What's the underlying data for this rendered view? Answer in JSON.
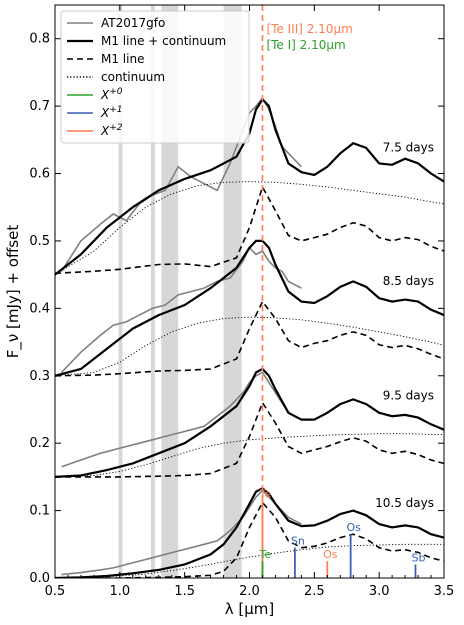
{
  "chart_data": {
    "type": "line",
    "title": "",
    "xlabel": "λ [μm]",
    "ylabel": "F_ν [mJy] + offset",
    "xlim": [
      0.5,
      3.5
    ],
    "ylim": [
      0.0,
      0.85
    ],
    "x_ticks": [
      "0.5",
      "1.0",
      "1.5",
      "2.0",
      "2.5",
      "3.0",
      "3.5"
    ],
    "y_ticks": [
      "0.0",
      "0.1",
      "0.2",
      "0.3",
      "0.4",
      "0.5",
      "0.6",
      "0.7",
      "0.8"
    ],
    "grid": false,
    "legend_position": "top-left",
    "legend": [
      {
        "label": "AT2017gfo",
        "style": "solid",
        "color": "#808080"
      },
      {
        "label": "M1 line + continuum",
        "style": "solid",
        "color": "#000000"
      },
      {
        "label": "M1 line",
        "style": "dashed",
        "color": "#000000"
      },
      {
        "label": "continuum",
        "style": "dotted",
        "color": "#000000"
      },
      {
        "label": "X+0",
        "style": "solid",
        "color": "#2ca02c"
      },
      {
        "label": "X+1",
        "style": "solid",
        "color": "#3a5fb0"
      },
      {
        "label": "X+2",
        "style": "solid",
        "color": "#ff7f50"
      }
    ],
    "reference_line": {
      "x": 2.1,
      "color": "#ff7f50",
      "style": "dashed"
    },
    "ref_labels": [
      {
        "text": "[Te III] 2.10μm",
        "color": "#ff7f50"
      },
      {
        "text": "[Te I] 2.10μm",
        "color": "#2ca02c"
      }
    ],
    "telluric_bands": [
      [
        0.99,
        1.02
      ],
      [
        1.24,
        1.27
      ],
      [
        1.32,
        1.45
      ],
      [
        1.8,
        1.94
      ]
    ],
    "epochs": [
      {
        "label": "7.5 days",
        "offset": 0.45,
        "model_total": {
          "x": [
            0.5,
            0.7,
            0.9,
            1.1,
            1.3,
            1.5,
            1.7,
            1.9,
            2.0,
            2.05,
            2.1,
            2.15,
            2.2,
            2.3,
            2.4,
            2.5,
            2.6,
            2.7,
            2.8,
            2.9,
            3.0,
            3.1,
            3.2,
            3.3,
            3.4,
            3.5
          ],
          "y": [
            0.45,
            0.48,
            0.52,
            0.55,
            0.575,
            0.592,
            0.605,
            0.625,
            0.66,
            0.695,
            0.71,
            0.7,
            0.665,
            0.615,
            0.602,
            0.598,
            0.61,
            0.63,
            0.645,
            0.638,
            0.615,
            0.613,
            0.622,
            0.615,
            0.6,
            0.588
          ]
        },
        "model_line": {
          "x": [
            0.5,
            0.8,
            1.0,
            1.3,
            1.5,
            1.7,
            1.9,
            2.0,
            2.1,
            2.2,
            2.3,
            2.4,
            2.5,
            2.6,
            2.7,
            2.8,
            2.9,
            3.0,
            3.1,
            3.2,
            3.3,
            3.4,
            3.5
          ],
          "y": [
            0.452,
            0.455,
            0.458,
            0.465,
            0.466,
            0.462,
            0.475,
            0.52,
            0.58,
            0.545,
            0.508,
            0.5,
            0.505,
            0.51,
            0.52,
            0.527,
            0.522,
            0.505,
            0.5,
            0.505,
            0.502,
            0.492,
            0.485
          ]
        },
        "continuum": {
          "x": [
            0.5,
            0.8,
            1.0,
            1.2,
            1.4,
            1.6,
            1.8,
            2.0,
            2.2,
            2.4,
            2.6,
            2.8,
            3.0,
            3.2,
            3.4,
            3.5
          ],
          "y": [
            0.45,
            0.485,
            0.52,
            0.55,
            0.57,
            0.582,
            0.587,
            0.588,
            0.587,
            0.584,
            0.58,
            0.575,
            0.57,
            0.565,
            0.558,
            0.555
          ]
        },
        "observed": {
          "x": [
            0.55,
            0.7,
            0.85,
            0.95,
            1.05,
            1.15,
            1.25,
            1.35,
            1.45,
            1.55,
            1.65,
            1.75,
            1.85,
            1.95,
            2.0,
            2.05,
            2.1,
            2.15,
            2.2,
            2.25,
            2.3,
            2.35,
            2.4
          ],
          "y": [
            0.455,
            0.5,
            0.525,
            0.54,
            0.53,
            0.555,
            0.568,
            0.575,
            0.61,
            0.595,
            0.585,
            0.575,
            0.615,
            0.665,
            0.69,
            0.7,
            0.712,
            0.695,
            0.67,
            0.64,
            0.63,
            0.62,
            0.61
          ]
        }
      },
      {
        "label": "8.5 days",
        "offset": 0.3,
        "model_total": {
          "x": [
            0.5,
            0.7,
            0.9,
            1.1,
            1.3,
            1.5,
            1.7,
            1.9,
            2.0,
            2.05,
            2.1,
            2.15,
            2.2,
            2.3,
            2.4,
            2.5,
            2.6,
            2.7,
            2.8,
            2.9,
            3.0,
            3.1,
            3.2,
            3.3,
            3.4,
            3.5
          ],
          "y": [
            0.3,
            0.31,
            0.34,
            0.37,
            0.39,
            0.405,
            0.43,
            0.46,
            0.49,
            0.5,
            0.5,
            0.49,
            0.465,
            0.425,
            0.41,
            0.408,
            0.418,
            0.432,
            0.44,
            0.432,
            0.415,
            0.41,
            0.413,
            0.41,
            0.398,
            0.39
          ]
        },
        "model_line": {
          "x": [
            0.5,
            0.8,
            1.0,
            1.3,
            1.5,
            1.7,
            1.9,
            2.0,
            2.1,
            2.2,
            2.3,
            2.4,
            2.5,
            2.6,
            2.7,
            2.8,
            2.9,
            3.0,
            3.1,
            3.2,
            3.3,
            3.4,
            3.5
          ],
          "y": [
            0.3,
            0.301,
            0.303,
            0.307,
            0.308,
            0.31,
            0.325,
            0.37,
            0.41,
            0.385,
            0.352,
            0.342,
            0.348,
            0.352,
            0.36,
            0.365,
            0.36,
            0.346,
            0.342,
            0.345,
            0.34,
            0.332,
            0.325
          ]
        },
        "continuum": {
          "x": [
            0.5,
            0.8,
            1.0,
            1.2,
            1.4,
            1.6,
            1.8,
            2.0,
            2.2,
            2.4,
            2.6,
            2.8,
            3.0,
            3.2,
            3.4,
            3.5
          ],
          "y": [
            0.3,
            0.305,
            0.32,
            0.345,
            0.365,
            0.378,
            0.385,
            0.387,
            0.386,
            0.383,
            0.378,
            0.372,
            0.365,
            0.358,
            0.35,
            0.345
          ]
        },
        "observed": {
          "x": [
            0.55,
            0.7,
            0.85,
            0.95,
            1.05,
            1.15,
            1.25,
            1.35,
            1.45,
            1.55,
            1.65,
            1.75,
            1.85,
            1.95,
            2.0,
            2.05,
            2.1,
            2.15,
            2.2,
            2.25,
            2.3,
            2.35,
            2.4
          ],
          "y": [
            0.305,
            0.335,
            0.36,
            0.375,
            0.38,
            0.39,
            0.4,
            0.405,
            0.42,
            0.425,
            0.43,
            0.44,
            0.445,
            0.47,
            0.49,
            0.48,
            0.485,
            0.47,
            0.46,
            0.455,
            0.44,
            0.435,
            0.43
          ]
        }
      },
      {
        "label": "9.5 days",
        "offset": 0.15,
        "model_total": {
          "x": [
            0.5,
            0.7,
            0.9,
            1.1,
            1.3,
            1.5,
            1.7,
            1.9,
            2.0,
            2.05,
            2.1,
            2.15,
            2.2,
            2.3,
            2.4,
            2.5,
            2.6,
            2.7,
            2.8,
            2.9,
            3.0,
            3.1,
            3.2,
            3.3,
            3.4,
            3.5
          ],
          "y": [
            0.15,
            0.152,
            0.16,
            0.17,
            0.185,
            0.2,
            0.225,
            0.255,
            0.285,
            0.305,
            0.31,
            0.3,
            0.28,
            0.245,
            0.235,
            0.235,
            0.245,
            0.258,
            0.265,
            0.258,
            0.245,
            0.24,
            0.242,
            0.238,
            0.228,
            0.22
          ]
        },
        "model_line": {
          "x": [
            0.5,
            0.8,
            1.0,
            1.3,
            1.5,
            1.7,
            1.9,
            2.0,
            2.1,
            2.2,
            2.3,
            2.4,
            2.5,
            2.6,
            2.7,
            2.8,
            2.9,
            3.0,
            3.1,
            3.2,
            3.3,
            3.4,
            3.5
          ],
          "y": [
            0.15,
            0.15,
            0.15,
            0.151,
            0.152,
            0.155,
            0.17,
            0.21,
            0.26,
            0.23,
            0.195,
            0.185,
            0.19,
            0.195,
            0.202,
            0.208,
            0.203,
            0.19,
            0.185,
            0.188,
            0.183,
            0.175,
            0.17
          ]
        },
        "continuum": {
          "x": [
            0.5,
            0.8,
            1.0,
            1.2,
            1.4,
            1.6,
            1.8,
            2.0,
            2.2,
            2.4,
            2.6,
            2.8,
            3.0,
            3.2,
            3.4,
            3.5
          ],
          "y": [
            0.15,
            0.152,
            0.158,
            0.168,
            0.18,
            0.192,
            0.2,
            0.205,
            0.208,
            0.21,
            0.212,
            0.213,
            0.214,
            0.214,
            0.213,
            0.213
          ]
        },
        "observed": {
          "x": [
            0.55,
            0.7,
            0.85,
            0.95,
            1.05,
            1.15,
            1.25,
            1.35,
            1.45,
            1.55,
            1.65,
            1.75,
            1.85,
            1.95,
            2.0,
            2.05,
            2.1,
            2.15,
            2.2,
            2.25,
            2.3,
            2.35,
            2.4
          ],
          "y": [
            0.165,
            0.175,
            0.185,
            0.19,
            0.195,
            0.2,
            0.205,
            0.21,
            0.215,
            0.22,
            0.225,
            0.24,
            0.255,
            0.275,
            0.29,
            0.3,
            0.305,
            0.29,
            0.275,
            0.26,
            0.245,
            0.24,
            0.235
          ]
        }
      },
      {
        "label": "10.5 days",
        "offset": 0.0,
        "model_total": {
          "x": [
            0.5,
            0.7,
            0.9,
            1.1,
            1.3,
            1.5,
            1.7,
            1.8,
            1.9,
            2.0,
            2.05,
            2.1,
            2.15,
            2.2,
            2.3,
            2.4,
            2.5,
            2.6,
            2.7,
            2.8,
            2.9,
            3.0,
            3.1,
            3.2,
            3.3,
            3.4,
            3.5
          ],
          "y": [
            0.0,
            0.001,
            0.003,
            0.007,
            0.012,
            0.02,
            0.035,
            0.05,
            0.075,
            0.11,
            0.128,
            0.133,
            0.125,
            0.11,
            0.085,
            0.077,
            0.078,
            0.085,
            0.095,
            0.1,
            0.093,
            0.08,
            0.075,
            0.078,
            0.075,
            0.065,
            0.06
          ]
        },
        "model_line": {
          "x": [
            0.5,
            0.8,
            1.0,
            1.3,
            1.5,
            1.7,
            1.8,
            1.9,
            2.0,
            2.1,
            2.2,
            2.3,
            2.4,
            2.5,
            2.6,
            2.7,
            2.8,
            2.9,
            3.0,
            3.1,
            3.2,
            3.3,
            3.4,
            3.5
          ],
          "y": [
            0.0,
            0.0,
            0.0,
            0.001,
            0.002,
            0.004,
            0.01,
            0.03,
            0.075,
            0.112,
            0.09,
            0.055,
            0.045,
            0.047,
            0.052,
            0.06,
            0.065,
            0.058,
            0.045,
            0.04,
            0.042,
            0.038,
            0.03,
            0.025
          ]
        },
        "continuum": {
          "x": [
            0.5,
            0.8,
            1.0,
            1.2,
            1.4,
            1.6,
            1.8,
            2.0,
            2.2,
            2.4,
            2.6,
            2.8,
            3.0,
            3.2,
            3.4,
            3.5
          ],
          "y": [
            0.0,
            0.001,
            0.003,
            0.006,
            0.011,
            0.017,
            0.024,
            0.031,
            0.037,
            0.042,
            0.046,
            0.048,
            0.049,
            0.05,
            0.05,
            0.05
          ]
        },
        "observed": {
          "x": [
            0.55,
            0.7,
            0.85,
            0.95,
            1.05,
            1.15,
            1.25,
            1.35,
            1.45,
            1.55,
            1.65,
            1.75,
            1.85,
            1.95,
            2.0,
            2.05,
            2.1,
            2.15,
            2.2,
            2.25,
            2.3,
            2.35,
            2.4
          ],
          "y": [
            0.005,
            0.008,
            0.012,
            0.015,
            0.02,
            0.025,
            0.03,
            0.035,
            0.04,
            0.045,
            0.05,
            0.055,
            0.07,
            0.09,
            0.105,
            0.12,
            0.13,
            0.12,
            0.11,
            0.1,
            0.09,
            0.085,
            0.08
          ]
        }
      }
    ],
    "element_markers": [
      {
        "label": "Te",
        "x": 2.1,
        "height": 0.115,
        "color": "#ff7f50",
        "tag": "te-iii"
      },
      {
        "label": "Te",
        "x": 2.1,
        "height": 0.025,
        "color": "#2ca02c",
        "tag": "te-i"
      },
      {
        "label": "Sn",
        "x": 2.35,
        "height": 0.045,
        "color": "#3a5fb0",
        "tag": "sn"
      },
      {
        "label": "Os",
        "x": 2.6,
        "height": 0.025,
        "color": "#ff7f50",
        "tag": "os-iii"
      },
      {
        "label": "Os",
        "x": 2.78,
        "height": 0.065,
        "color": "#3a5fb0",
        "tag": "os-ii"
      },
      {
        "label": "Sb",
        "x": 3.28,
        "height": 0.02,
        "color": "#3a5fb0",
        "tag": "sb"
      }
    ]
  }
}
